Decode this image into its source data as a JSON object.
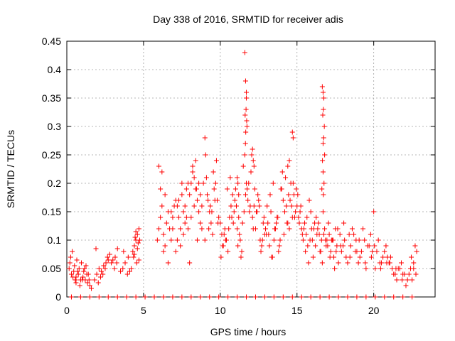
{
  "chart_data": {
    "type": "scatter",
    "title": "Day 338 of 2016, SRMTID for receiver adis",
    "xlabel": "GPS time / hours",
    "ylabel": "SRMTID / TECUs",
    "xlim": [
      0,
      24
    ],
    "ylim": [
      0,
      0.45
    ],
    "xticks": [
      0,
      5,
      10,
      15,
      20
    ],
    "xtick_labels": [
      "0",
      "5",
      "10",
      "15",
      "20"
    ],
    "yticks": [
      0,
      0.05,
      0.1,
      0.15,
      0.2,
      0.25,
      0.3,
      0.35,
      0.4,
      0.45
    ],
    "ytick_labels": [
      "0",
      "0.05",
      "0.1",
      "0.15",
      "0.2",
      "0.25",
      "0.3",
      "0.35",
      "0.4",
      "0.45"
    ],
    "grid": true,
    "marker": "+",
    "color": "#ff0000",
    "series": [
      {
        "name": "SRMTID",
        "x": [
          0.15,
          0.3,
          0.45,
          0.6,
          0.75,
          0.9,
          1.05,
          1.2,
          1.35,
          1.5,
          0.2,
          0.5,
          0.8,
          1.1,
          1.4,
          0.25,
          0.55,
          0.85,
          1.15,
          1.45,
          0.35,
          0.65,
          0.95,
          1.25,
          0.4,
          0.7,
          1.0,
          1.3,
          0.6,
          1.6,
          1.8,
          1.95,
          2.1,
          2.25,
          2.4,
          2.55,
          2.7,
          1.9,
          2.2,
          2.5,
          2.05,
          2.35,
          2.65,
          2.8,
          2.9,
          3.0,
          3.15,
          3.3,
          3.1,
          3.25,
          3.5,
          3.65,
          3.8,
          3.95,
          4.1,
          3.7,
          4.0,
          4.2,
          4.3,
          4.4,
          4.5,
          4.6,
          4.7,
          4.35,
          4.55,
          4.65,
          4.45,
          4.6,
          4.5,
          4.75,
          4.4,
          4.7,
          5.9,
          6.0,
          6.1,
          6.2,
          6.3,
          6.4,
          6.0,
          6.2,
          6.5,
          6.6,
          6.7,
          6.8,
          6.9,
          7.0,
          6.3,
          6.6,
          6.9,
          6.1,
          6.4,
          6.8,
          7.1,
          7.2,
          7.3,
          7.4,
          7.5,
          7.6,
          7.7,
          7.8,
          7.9,
          7.2,
          7.4,
          7.6,
          7.8,
          7.3,
          7.5,
          7.7,
          7.1,
          7.9,
          8.0,
          8.1,
          8.2,
          8.3,
          8.4,
          8.5,
          8.6,
          8.7,
          8.8,
          8.9,
          8.1,
          8.3,
          8.5,
          8.7,
          8.2,
          8.4,
          8.6,
          8.8,
          8.0,
          8.45,
          9.0,
          9.05,
          9.1,
          9.2,
          9.3,
          9.4,
          9.5,
          9.6,
          9.7,
          9.8,
          9.9,
          9.15,
          9.35,
          9.55,
          9.75,
          9.0,
          9.25,
          9.45,
          9.65,
          9.85,
          10.0,
          10.1,
          10.2,
          10.3,
          10.4,
          10.5,
          10.6,
          10.7,
          10.8,
          10.9,
          10.05,
          10.25,
          10.45,
          10.65,
          10.85,
          10.15,
          10.35,
          10.55,
          10.75,
          10.95,
          11.0,
          11.1,
          11.2,
          11.3,
          11.4,
          11.5,
          11.6,
          11.7,
          11.8,
          11.9,
          11.05,
          11.25,
          11.45,
          11.65,
          11.85,
          11.15,
          11.35,
          11.55,
          11.75,
          11.95,
          11.6,
          11.65,
          11.7,
          11.68,
          11.62,
          11.72,
          11.66,
          11.7,
          11.74,
          11.64,
          11.1,
          11.15,
          11.2,
          12.1,
          12.05,
          12.15,
          12.0,
          12.2,
          12.1,
          12.2,
          12.3,
          12.4,
          12.5,
          12.6,
          12.7,
          12.8,
          12.9,
          12.25,
          12.45,
          12.65,
          12.85,
          12.15,
          12.35,
          12.55,
          12.75,
          12.95,
          13.0,
          13.1,
          13.2,
          13.3,
          13.4,
          13.5,
          13.6,
          13.7,
          13.8,
          13.9,
          13.05,
          13.25,
          13.45,
          13.65,
          13.85,
          13.15,
          13.35,
          13.55,
          13.75,
          13.95,
          14.0,
          14.1,
          14.2,
          14.3,
          14.4,
          14.5,
          14.6,
          14.7,
          14.8,
          14.9,
          14.05,
          14.25,
          14.45,
          14.65,
          14.85,
          14.15,
          14.35,
          14.55,
          14.75,
          14.95,
          14.7,
          14.75,
          14.4,
          14.5,
          15.0,
          15.1,
          15.2,
          15.3,
          15.4,
          15.5,
          15.6,
          15.7,
          15.8,
          15.9,
          15.05,
          15.25,
          15.45,
          15.65,
          15.85,
          15.15,
          15.35,
          15.55,
          15.75,
          15.95,
          16.0,
          16.1,
          16.2,
          16.3,
          16.4,
          16.5,
          16.6,
          16.7,
          16.8,
          16.9,
          16.05,
          16.25,
          16.45,
          16.65,
          16.85,
          16.15,
          16.35,
          16.55,
          16.75,
          16.95,
          16.65,
          16.7,
          16.75,
          16.72,
          16.68,
          16.78,
          16.74,
          16.7,
          16.8,
          16.66,
          16.7,
          16.76,
          16.72,
          16.62,
          17.0,
          17.1,
          17.2,
          17.3,
          17.4,
          17.5,
          17.6,
          17.7,
          17.8,
          17.9,
          17.05,
          17.25,
          17.45,
          17.65,
          17.85,
          17.15,
          17.35,
          17.55,
          18.0,
          18.2,
          18.4,
          18.6,
          18.8,
          18.1,
          18.3,
          18.5,
          18.7,
          18.9,
          18.05,
          18.45,
          18.85,
          19.0,
          19.2,
          19.4,
          19.6,
          19.8,
          19.1,
          19.3,
          19.5,
          19.7,
          19.9,
          19.05,
          19.45,
          19.85,
          20.0,
          20.2,
          20.4,
          20.6,
          20.8,
          20.1,
          20.3,
          20.5,
          20.7,
          20.9,
          20.05,
          20.45,
          20.85,
          21.0,
          21.2,
          21.4,
          21.6,
          21.8,
          21.1,
          21.3,
          21.5,
          21.7,
          21.9,
          21.05,
          21.45,
          21.85,
          22.0,
          22.2,
          22.4,
          22.6,
          22.8,
          22.1,
          22.3,
          22.5,
          22.7,
          22.45,
          22.6,
          22.75,
          0.3,
          0.9,
          1.5,
          2.1,
          2.7,
          3.3,
          3.9,
          4.5,
          5.1,
          5.7,
          6.3,
          6.9,
          7.5,
          8.1,
          8.7,
          9.3,
          9.9,
          10.5,
          11.1,
          11.7,
          12.3,
          12.9,
          13.5,
          14.1,
          14.7,
          15.3,
          15.9,
          16.5,
          17.1,
          17.7,
          18.3,
          18.9,
          19.5,
          20.1,
          20.7,
          21.3,
          21.9,
          22.5
        ],
        "y": [
          0.05,
          0.04,
          0.045,
          0.035,
          0.04,
          0.03,
          0.035,
          0.03,
          0.025,
          0.02,
          0.06,
          0.055,
          0.05,
          0.045,
          0.04,
          0.07,
          0.03,
          0.02,
          0.05,
          0.03,
          0.08,
          0.065,
          0.06,
          0.055,
          0.035,
          0.045,
          0.03,
          0.04,
          0.025,
          0.015,
          0.03,
          0.04,
          0.05,
          0.045,
          0.055,
          0.06,
          0.065,
          0.085,
          0.035,
          0.05,
          0.025,
          0.04,
          0.07,
          0.075,
          0.06,
          0.065,
          0.07,
          0.085,
          0.05,
          0.06,
          0.045,
          0.05,
          0.06,
          0.04,
          0.045,
          0.08,
          0.07,
          0.05,
          0.08,
          0.09,
          0.1,
          0.11,
          0.12,
          0.07,
          0.06,
          0.095,
          0.105,
          0.085,
          0.115,
          0.1,
          0.075,
          0.065,
          0.1,
          0.12,
          0.14,
          0.16,
          0.11,
          0.09,
          0.23,
          0.22,
          0.13,
          0.15,
          0.12,
          0.1,
          0.14,
          0.16,
          0.08,
          0.06,
          0.12,
          0.19,
          0.18,
          0.15,
          0.17,
          0.16,
          0.14,
          0.12,
          0.18,
          0.15,
          0.13,
          0.19,
          0.2,
          0.1,
          0.09,
          0.11,
          0.14,
          0.17,
          0.2,
          0.16,
          0.08,
          0.12,
          0.18,
          0.2,
          0.22,
          0.21,
          0.19,
          0.17,
          0.15,
          0.13,
          0.12,
          0.2,
          0.14,
          0.16,
          0.1,
          0.18,
          0.23,
          0.24,
          0.2,
          0.16,
          0.06,
          0.19,
          0.28,
          0.25,
          0.21,
          0.17,
          0.15,
          0.13,
          0.11,
          0.19,
          0.2,
          0.17,
          0.14,
          0.18,
          0.16,
          0.22,
          0.24,
          0.1,
          0.12,
          0.15,
          0.17,
          0.13,
          0.13,
          0.11,
          0.09,
          0.12,
          0.1,
          0.08,
          0.14,
          0.16,
          0.18,
          0.15,
          0.07,
          0.11,
          0.19,
          0.21,
          0.13,
          0.09,
          0.1,
          0.12,
          0.14,
          0.17,
          0.19,
          0.12,
          0.14,
          0.1,
          0.08,
          0.23,
          0.25,
          0.2,
          0.17,
          0.15,
          0.16,
          0.11,
          0.13,
          0.18,
          0.2,
          0.09,
          0.07,
          0.15,
          0.19,
          0.16,
          0.43,
          0.38,
          0.35,
          0.33,
          0.32,
          0.31,
          0.29,
          0.36,
          0.3,
          0.27,
          0.21,
          0.2,
          0.18,
          0.26,
          0.25,
          0.24,
          0.22,
          0.23,
          0.14,
          0.16,
          0.12,
          0.15,
          0.17,
          0.1,
          0.09,
          0.13,
          0.11,
          0.19,
          0.18,
          0.08,
          0.14,
          0.12,
          0.15,
          0.16,
          0.1,
          0.12,
          0.11,
          0.13,
          0.09,
          0.15,
          0.07,
          0.1,
          0.12,
          0.14,
          0.08,
          0.1,
          0.16,
          0.18,
          0.2,
          0.13,
          0.09,
          0.11,
          0.07,
          0.12,
          0.14,
          0.19,
          0.19,
          0.17,
          0.15,
          0.16,
          0.13,
          0.12,
          0.2,
          0.14,
          0.18,
          0.15,
          0.22,
          0.21,
          0.18,
          0.16,
          0.14,
          0.11,
          0.13,
          0.17,
          0.2,
          0.19,
          0.29,
          0.28,
          0.23,
          0.24,
          0.16,
          0.14,
          0.15,
          0.12,
          0.1,
          0.13,
          0.11,
          0.09,
          0.17,
          0.15,
          0.18,
          0.16,
          0.12,
          0.14,
          0.1,
          0.13,
          0.11,
          0.08,
          0.06,
          0.12,
          0.1,
          0.12,
          0.09,
          0.11,
          0.13,
          0.08,
          0.1,
          0.15,
          0.12,
          0.09,
          0.07,
          0.14,
          0.11,
          0.06,
          0.1,
          0.13,
          0.12,
          0.08,
          0.11,
          0.1,
          0.37,
          0.36,
          0.35,
          0.33,
          0.32,
          0.3,
          0.28,
          0.27,
          0.25,
          0.24,
          0.22,
          0.2,
          0.18,
          0.19,
          0.09,
          0.11,
          0.08,
          0.1,
          0.07,
          0.12,
          0.09,
          0.06,
          0.11,
          0.08,
          0.13,
          0.1,
          0.05,
          0.12,
          0.09,
          0.07,
          0.1,
          0.08,
          0.09,
          0.07,
          0.11,
          0.12,
          0.08,
          0.1,
          0.06,
          0.09,
          0.11,
          0.08,
          0.13,
          0.07,
          0.1,
          0.06,
          0.08,
          0.1,
          0.09,
          0.11,
          0.07,
          0.12,
          0.05,
          0.09,
          0.08,
          0.1,
          0.06,
          0.07,
          0.15,
          0.08,
          0.06,
          0.07,
          0.09,
          0.05,
          0.1,
          0.06,
          0.08,
          0.07,
          0.09,
          0.05,
          0.06,
          0.06,
          0.05,
          0.04,
          0.05,
          0.06,
          0.07,
          0.04,
          0.03,
          0.05,
          0.04,
          0.06,
          0.05,
          0.03,
          0.04,
          0.03,
          0.05,
          0.06,
          0.08,
          0.02,
          0.04,
          0.03,
          0.09,
          0.07,
          0.05,
          0.04,
          0.0,
          0.0,
          0.0,
          0.0,
          0.0,
          0.0,
          0.0,
          0.0,
          0.0,
          0.0,
          0.0,
          0.0,
          0.0,
          0.0,
          0.0,
          0.0,
          0.0,
          0.0,
          0.0,
          0.0,
          0.0,
          0.0,
          0.0,
          0.0,
          0.0,
          0.0,
          0.0,
          0.0,
          0.0,
          0.0,
          0.0,
          0.0,
          0.0,
          0.0,
          0.0,
          0.0,
          0.0,
          0.0
        ]
      }
    ]
  }
}
